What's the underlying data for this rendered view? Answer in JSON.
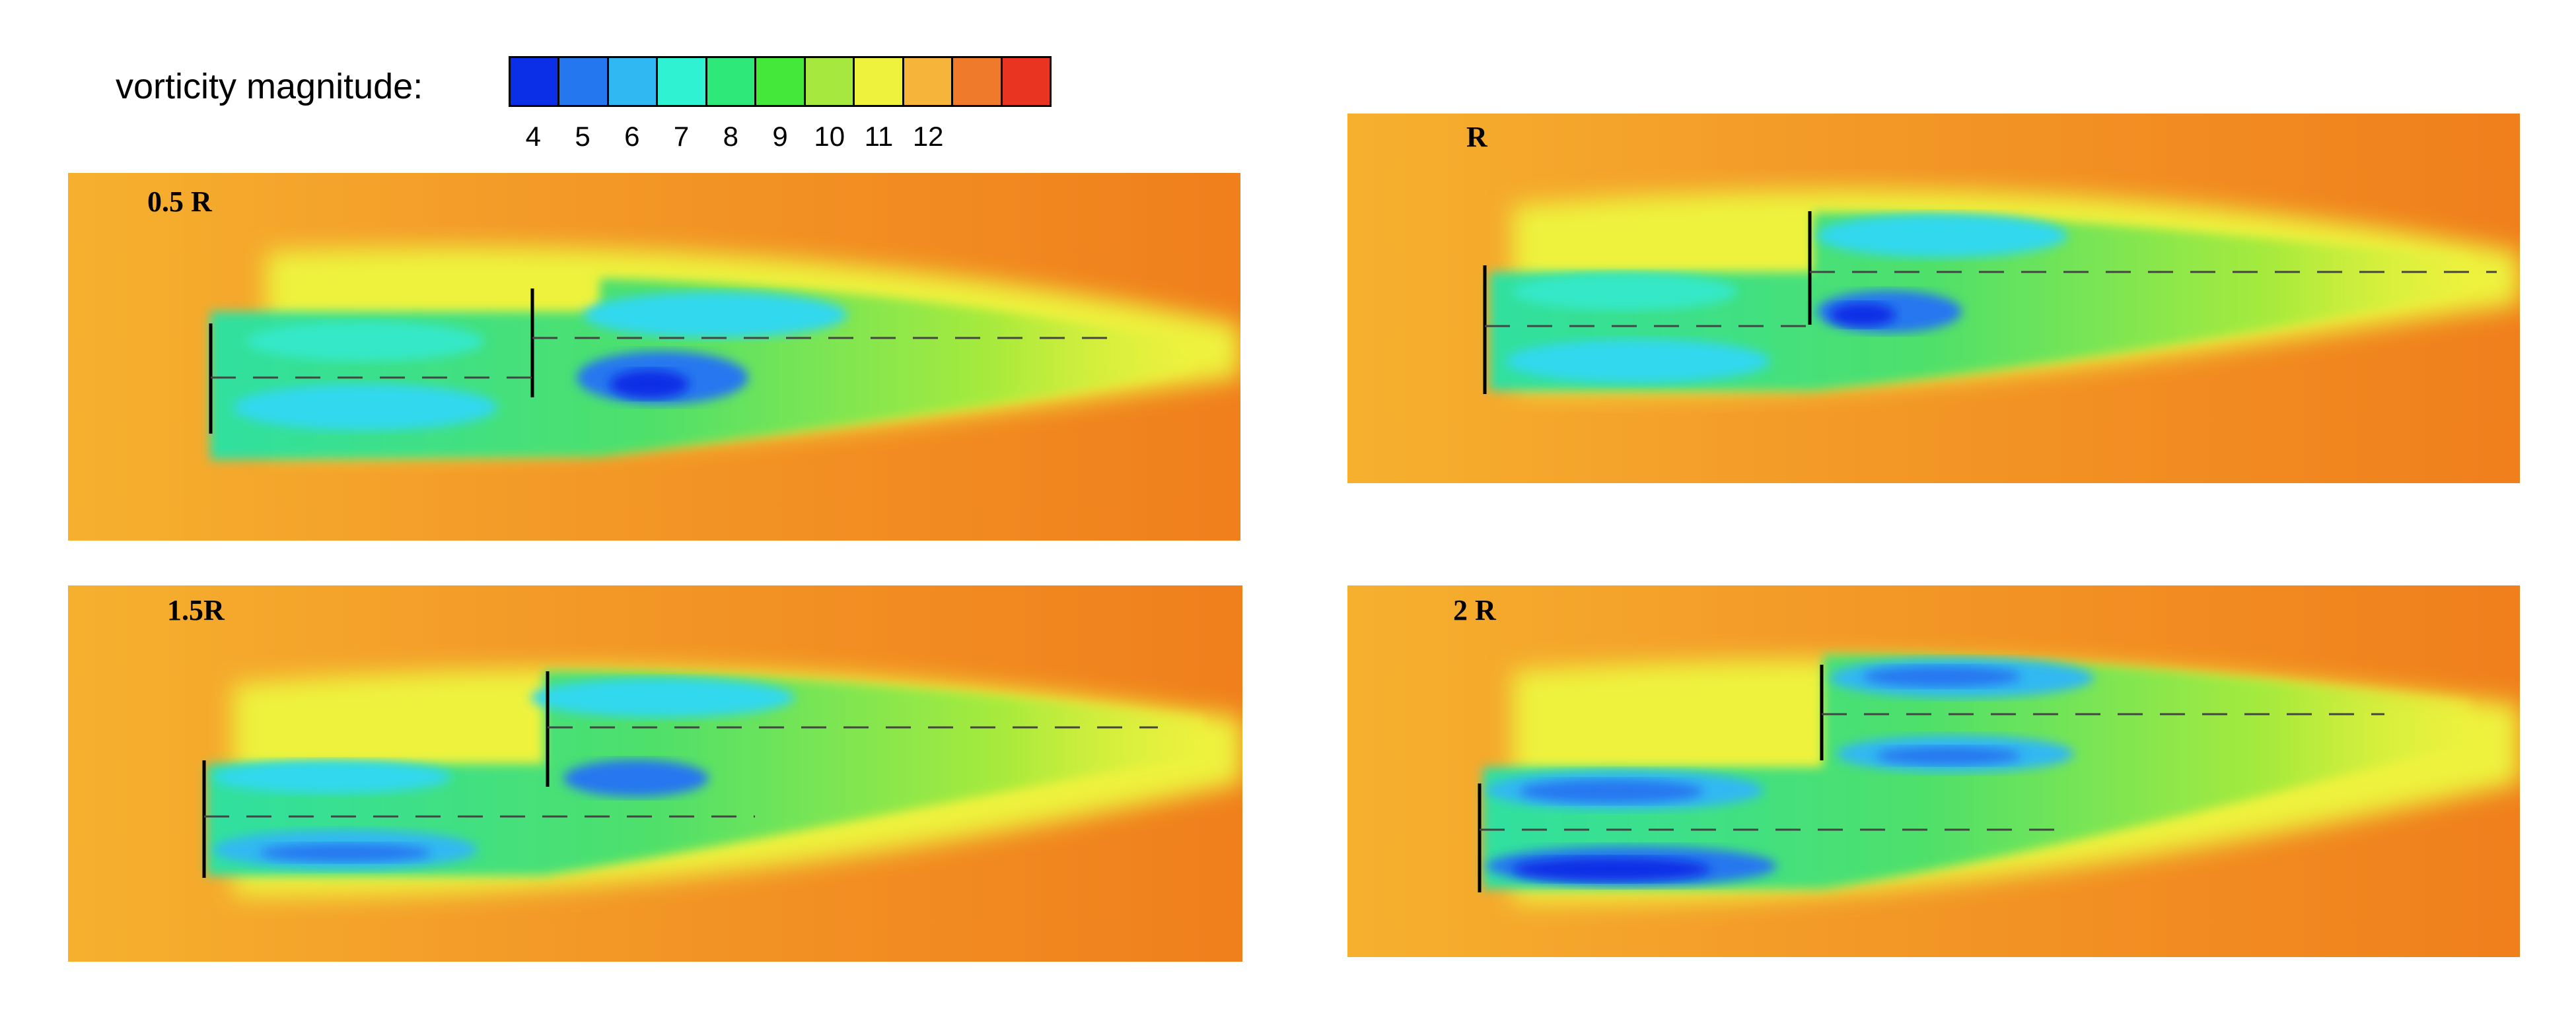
{
  "legend": {
    "title": "vorticity magnitude:",
    "ticks": [
      "4",
      "5",
      "6",
      "7",
      "8",
      "9",
      "10",
      "11",
      "12"
    ],
    "colors": [
      "#0a2fe6",
      "#2577f0",
      "#30b8f2",
      "#2ff2d2",
      "#2fe87a",
      "#44e83b",
      "#a6e83d",
      "#eef23d",
      "#f7b43b",
      "#f07a2c",
      "#e83420"
    ]
  },
  "panels": [
    {
      "label": "0.5 R",
      "background": "#f4a42c"
    },
    {
      "label": "R",
      "background": "#f4a42c"
    },
    {
      "label": "1.5R",
      "background": "#f4a42c"
    },
    {
      "label": "2 R",
      "background": "#f4a42c"
    }
  ]
}
